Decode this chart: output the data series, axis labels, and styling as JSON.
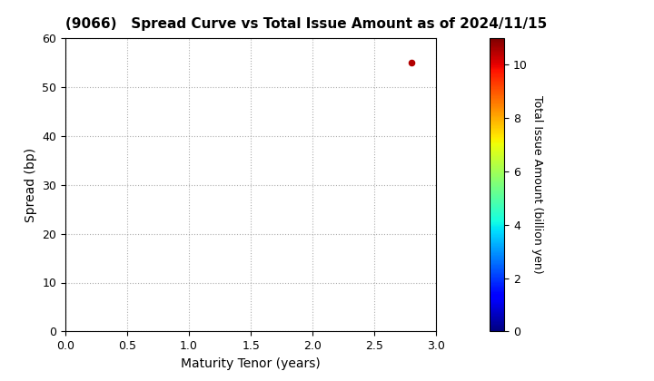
{
  "title": "(9066)   Spread Curve vs Total Issue Amount as of 2024/11/15",
  "xlabel": "Maturity Tenor (years)",
  "ylabel": "Spread (bp)",
  "colorbar_label": "Total Issue Amount (billion yen)",
  "xlim": [
    0.0,
    3.0
  ],
  "ylim": [
    0,
    60
  ],
  "xticks": [
    0.0,
    0.5,
    1.0,
    1.5,
    2.0,
    2.5,
    3.0
  ],
  "yticks": [
    0,
    10,
    20,
    30,
    40,
    50,
    60
  ],
  "colorbar_ticks": [
    0,
    2,
    4,
    6,
    8,
    10
  ],
  "colorbar_range": [
    0,
    11
  ],
  "scatter_x": [
    2.8
  ],
  "scatter_y": [
    55
  ],
  "scatter_color_value": [
    10.5
  ],
  "scatter_size": 20,
  "grid_color": "#999999",
  "background_color": "#ffffff",
  "title_fontsize": 11,
  "axis_label_fontsize": 10,
  "tick_fontsize": 9,
  "colorbar_label_fontsize": 9
}
